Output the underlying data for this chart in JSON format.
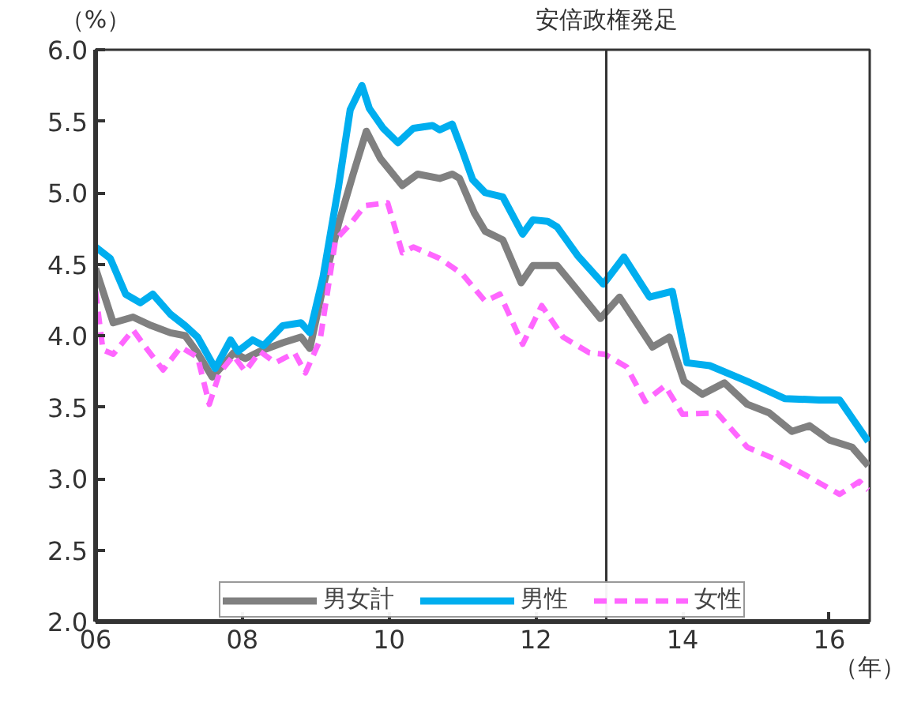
{
  "chart_data": {
    "type": "line",
    "ylabel": "（%）",
    "xlabel": "（年）",
    "xlim": [
      2006,
      2016.55
    ],
    "ylim": [
      2.0,
      6.0
    ],
    "xticks": [
      {
        "value": 2006,
        "label": "06"
      },
      {
        "value": 2008,
        "label": "08"
      },
      {
        "value": 2010,
        "label": "10"
      },
      {
        "value": 2012,
        "label": "12"
      },
      {
        "value": 2014,
        "label": "14"
      },
      {
        "value": 2016,
        "label": "16"
      }
    ],
    "yticks": [
      {
        "value": 2.0,
        "label": "2.0"
      },
      {
        "value": 2.5,
        "label": "2.5"
      },
      {
        "value": 3.0,
        "label": "3.0"
      },
      {
        "value": 3.5,
        "label": "3.5"
      },
      {
        "value": 4.0,
        "label": "4.0"
      },
      {
        "value": 4.5,
        "label": "4.5"
      },
      {
        "value": 5.0,
        "label": "5.0"
      },
      {
        "value": 5.5,
        "label": "5.5"
      },
      {
        "value": 6.0,
        "label": "6.0"
      }
    ],
    "grid": false,
    "legend": "bottom",
    "marker": "none",
    "ref_lines": [
      {
        "axis": "x",
        "value": 2012.96,
        "label": "安倍政権発足",
        "color": "#333333",
        "line_style": "solid"
      }
    ],
    "series": [
      {
        "name": "男女計",
        "color": "#808080",
        "line_style": "solid",
        "x": [
          2006.0,
          2006.24,
          2006.51,
          2006.76,
          2007.02,
          2007.22,
          2007.39,
          2007.59,
          2007.73,
          2007.88,
          2008.04,
          2008.24,
          2008.55,
          2008.8,
          2008.92,
          2009.1,
          2009.31,
          2009.51,
          2009.69,
          2009.88,
          2010.18,
          2010.39,
          2010.69,
          2010.86,
          2010.96,
          2011.16,
          2011.31,
          2011.55,
          2011.8,
          2011.96,
          2012.29,
          2012.53,
          2012.88,
          2013.14,
          2013.59,
          2013.82,
          2014.02,
          2014.27,
          2014.57,
          2014.88,
          2015.18,
          2015.49,
          2015.73,
          2016.0,
          2016.31,
          2016.53
        ],
        "values": [
          4.47,
          4.09,
          4.13,
          4.07,
          4.02,
          4.0,
          3.88,
          3.71,
          3.79,
          3.88,
          3.84,
          3.89,
          3.95,
          3.99,
          3.91,
          4.34,
          4.78,
          5.13,
          5.43,
          5.24,
          5.05,
          5.13,
          5.1,
          5.13,
          5.1,
          4.86,
          4.73,
          4.67,
          4.37,
          4.49,
          4.49,
          4.34,
          4.12,
          4.27,
          3.92,
          3.99,
          3.68,
          3.59,
          3.67,
          3.52,
          3.46,
          3.33,
          3.37,
          3.27,
          3.22,
          3.09
        ]
      },
      {
        "name": "男性",
        "color": "#00aeef",
        "line_style": "solid",
        "x": [
          2006.0,
          2006.2,
          2006.41,
          2006.61,
          2006.78,
          2007.02,
          2007.22,
          2007.39,
          2007.63,
          2007.84,
          2007.94,
          2008.14,
          2008.29,
          2008.55,
          2008.8,
          2008.92,
          2009.1,
          2009.31,
          2009.47,
          2009.63,
          2009.73,
          2009.92,
          2010.12,
          2010.33,
          2010.59,
          2010.69,
          2010.86,
          2011.0,
          2011.14,
          2011.31,
          2011.55,
          2011.82,
          2011.96,
          2012.16,
          2012.29,
          2012.57,
          2012.92,
          2013.2,
          2013.55,
          2013.86,
          2014.06,
          2014.37,
          2014.88,
          2015.39,
          2015.86,
          2016.14,
          2016.53
        ],
        "values": [
          4.62,
          4.54,
          4.29,
          4.23,
          4.29,
          4.15,
          4.07,
          3.99,
          3.77,
          3.97,
          3.89,
          3.97,
          3.93,
          4.07,
          4.09,
          4.02,
          4.41,
          5.04,
          5.58,
          5.75,
          5.59,
          5.45,
          5.35,
          5.45,
          5.47,
          5.44,
          5.48,
          5.29,
          5.09,
          5.0,
          4.97,
          4.71,
          4.81,
          4.8,
          4.76,
          4.56,
          4.36,
          4.55,
          4.27,
          4.31,
          3.81,
          3.79,
          3.68,
          3.56,
          3.55,
          3.55,
          3.26
        ]
      },
      {
        "name": "女性",
        "color": "#ff66ff",
        "line_style": "dashed",
        "x": [
          2006.0,
          2006.1,
          2006.24,
          2006.51,
          2006.71,
          2006.92,
          2007.16,
          2007.39,
          2007.55,
          2007.69,
          2007.88,
          2008.04,
          2008.24,
          2008.45,
          2008.71,
          2008.86,
          2009.06,
          2009.27,
          2009.47,
          2009.67,
          2009.98,
          2010.18,
          2010.33,
          2010.69,
          2011.0,
          2011.31,
          2011.51,
          2011.82,
          2012.08,
          2012.37,
          2012.73,
          2012.94,
          2013.24,
          2013.49,
          2013.76,
          2014.0,
          2014.47,
          2014.88,
          2015.29,
          2015.69,
          2016.14,
          2016.41,
          2016.53
        ],
        "values": [
          4.31,
          3.9,
          3.87,
          4.04,
          3.9,
          3.76,
          3.92,
          3.85,
          3.52,
          3.74,
          3.86,
          3.75,
          3.89,
          3.81,
          3.88,
          3.74,
          3.97,
          4.67,
          4.78,
          4.91,
          4.93,
          4.58,
          4.62,
          4.54,
          4.43,
          4.24,
          4.29,
          3.94,
          4.21,
          3.99,
          3.88,
          3.87,
          3.78,
          3.54,
          3.65,
          3.45,
          3.46,
          3.22,
          3.13,
          3.02,
          2.89,
          2.98,
          2.92
        ]
      }
    ]
  }
}
